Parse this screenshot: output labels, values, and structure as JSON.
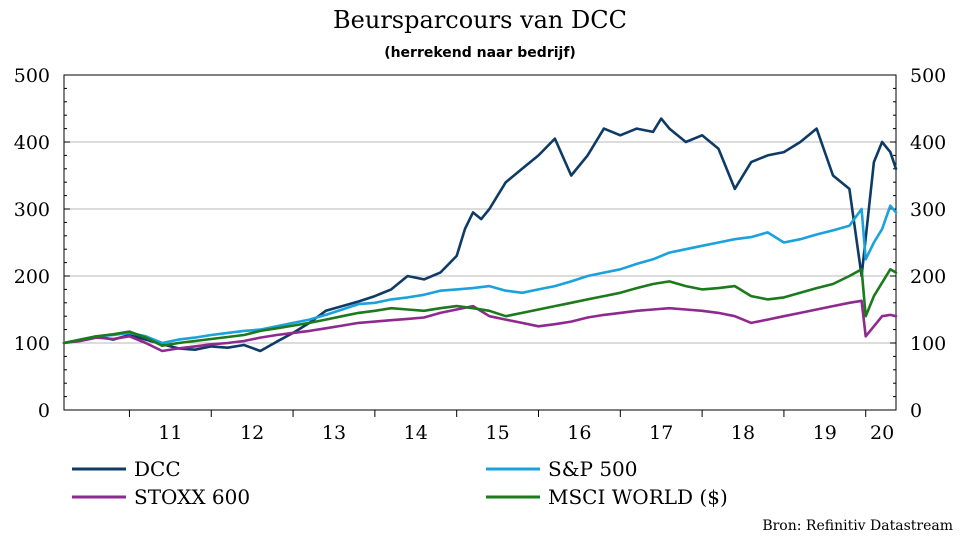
{
  "chart_data": {
    "type": "line",
    "title": "Beursparcours van DCC",
    "subtitle": "(herrekend naar bedrijf)",
    "source": "Bron: Refinitiv Datastream",
    "xlabel": "",
    "ylabel": "",
    "ylim": [
      0,
      500
    ],
    "xlim": [
      2010.2,
      2020.37
    ],
    "y_ticks": [
      0,
      100,
      200,
      300,
      400,
      500
    ],
    "x_ticks": [
      {
        "label": "11",
        "value": 2011.5
      },
      {
        "label": "12",
        "value": 2012.5
      },
      {
        "label": "13",
        "value": 2013.5
      },
      {
        "label": "14",
        "value": 2014.5
      },
      {
        "label": "15",
        "value": 2015.5
      },
      {
        "label": "16",
        "value": 2016.5
      },
      {
        "label": "17",
        "value": 2017.5
      },
      {
        "label": "18",
        "value": 2018.5
      },
      {
        "label": "19",
        "value": 2019.5
      },
      {
        "label": "20",
        "value": 2020.5
      }
    ],
    "grid": "horizontal",
    "legend_position": "bottom",
    "series": [
      {
        "name": "DCC",
        "color": "#0d3b66",
        "x": [
          2010.2,
          2010.4,
          2010.6,
          2010.8,
          2011.0,
          2011.2,
          2011.4,
          2011.6,
          2011.8,
          2012.0,
          2012.2,
          2012.4,
          2012.6,
          2012.8,
          2013.0,
          2013.2,
          2013.4,
          2013.6,
          2013.8,
          2014.0,
          2014.2,
          2014.4,
          2014.6,
          2014.8,
          2015.0,
          2015.1,
          2015.2,
          2015.3,
          2015.4,
          2015.5,
          2015.6,
          2015.8,
          2016.0,
          2016.2,
          2016.4,
          2016.6,
          2016.8,
          2017.0,
          2017.2,
          2017.4,
          2017.5,
          2017.6,
          2017.8,
          2018.0,
          2018.2,
          2018.4,
          2018.6,
          2018.8,
          2019.0,
          2019.2,
          2019.4,
          2019.6,
          2019.8,
          2019.95,
          2020.1,
          2020.2,
          2020.3,
          2020.37
        ],
        "y": [
          100,
          105,
          110,
          105,
          112,
          105,
          98,
          92,
          90,
          95,
          93,
          97,
          88,
          102,
          115,
          130,
          148,
          155,
          162,
          170,
          180,
          200,
          195,
          205,
          230,
          270,
          295,
          285,
          300,
          320,
          340,
          360,
          380,
          405,
          350,
          380,
          420,
          410,
          420,
          415,
          435,
          420,
          400,
          410,
          390,
          330,
          370,
          380,
          385,
          400,
          420,
          350,
          330,
          200,
          370,
          400,
          385,
          360
        ]
      },
      {
        "name": "S&P 500",
        "color": "#1ba1dc",
        "x": [
          2010.2,
          2010.4,
          2010.6,
          2010.8,
          2011.0,
          2011.2,
          2011.4,
          2011.6,
          2011.8,
          2012.0,
          2012.2,
          2012.4,
          2012.6,
          2012.8,
          2013.0,
          2013.2,
          2013.4,
          2013.6,
          2013.8,
          2014.0,
          2014.2,
          2014.4,
          2014.6,
          2014.8,
          2015.0,
          2015.2,
          2015.4,
          2015.6,
          2015.8,
          2016.0,
          2016.2,
          2016.4,
          2016.6,
          2016.8,
          2017.0,
          2017.2,
          2017.4,
          2017.6,
          2017.8,
          2018.0,
          2018.2,
          2018.4,
          2018.6,
          2018.8,
          2019.0,
          2019.2,
          2019.4,
          2019.6,
          2019.8,
          2019.95,
          2020.0,
          2020.1,
          2020.2,
          2020.3,
          2020.37
        ],
        "y": [
          100,
          105,
          110,
          112,
          115,
          110,
          100,
          105,
          108,
          112,
          115,
          118,
          120,
          125,
          130,
          135,
          142,
          150,
          158,
          160,
          165,
          168,
          172,
          178,
          180,
          182,
          185,
          178,
          175,
          180,
          185,
          192,
          200,
          205,
          210,
          218,
          225,
          235,
          240,
          245,
          250,
          255,
          258,
          265,
          250,
          255,
          262,
          268,
          275,
          300,
          225,
          250,
          270,
          305,
          295
        ]
      },
      {
        "name": "STOXX 600",
        "color": "#8e2a8e",
        "x": [
          2010.2,
          2010.4,
          2010.6,
          2010.8,
          2011.0,
          2011.2,
          2011.4,
          2011.6,
          2011.8,
          2012.0,
          2012.2,
          2012.4,
          2012.6,
          2012.8,
          2013.0,
          2013.2,
          2013.4,
          2013.6,
          2013.8,
          2014.0,
          2014.2,
          2014.4,
          2014.6,
          2014.8,
          2015.0,
          2015.2,
          2015.4,
          2015.6,
          2015.8,
          2016.0,
          2016.2,
          2016.4,
          2016.6,
          2016.8,
          2017.0,
          2017.2,
          2017.4,
          2017.6,
          2017.8,
          2018.0,
          2018.2,
          2018.4,
          2018.6,
          2018.8,
          2019.0,
          2019.2,
          2019.4,
          2019.6,
          2019.8,
          2019.95,
          2020.0,
          2020.1,
          2020.2,
          2020.3,
          2020.37
        ],
        "y": [
          100,
          103,
          108,
          106,
          110,
          100,
          88,
          92,
          95,
          98,
          100,
          103,
          108,
          112,
          115,
          118,
          122,
          126,
          130,
          132,
          134,
          136,
          138,
          145,
          150,
          155,
          140,
          135,
          130,
          125,
          128,
          132,
          138,
          142,
          145,
          148,
          150,
          152,
          150,
          148,
          145,
          140,
          130,
          135,
          140,
          145,
          150,
          155,
          160,
          163,
          110,
          125,
          140,
          142,
          140
        ]
      },
      {
        "name": "MSCI WORLD ($)",
        "color": "#1b7a1b",
        "x": [
          2010.2,
          2010.4,
          2010.6,
          2010.8,
          2011.0,
          2011.2,
          2011.4,
          2011.6,
          2011.8,
          2012.0,
          2012.2,
          2012.4,
          2012.6,
          2012.8,
          2013.0,
          2013.2,
          2013.4,
          2013.6,
          2013.8,
          2014.0,
          2014.2,
          2014.4,
          2014.6,
          2014.8,
          2015.0,
          2015.2,
          2015.4,
          2015.6,
          2015.8,
          2016.0,
          2016.2,
          2016.4,
          2016.6,
          2016.8,
          2017.0,
          2017.2,
          2017.4,
          2017.6,
          2017.8,
          2018.0,
          2018.2,
          2018.4,
          2018.6,
          2018.8,
          2019.0,
          2019.2,
          2019.4,
          2019.6,
          2019.8,
          2019.95,
          2020.0,
          2020.1,
          2020.2,
          2020.3,
          2020.37
        ],
        "y": [
          100,
          105,
          110,
          113,
          117,
          108,
          96,
          100,
          103,
          106,
          109,
          112,
          118,
          122,
          126,
          130,
          135,
          140,
          145,
          148,
          152,
          150,
          148,
          152,
          155,
          152,
          148,
          140,
          145,
          150,
          155,
          160,
          165,
          170,
          175,
          182,
          188,
          192,
          185,
          180,
          182,
          185,
          170,
          165,
          168,
          175,
          182,
          188,
          200,
          210,
          140,
          170,
          190,
          210,
          205
        ]
      }
    ]
  }
}
